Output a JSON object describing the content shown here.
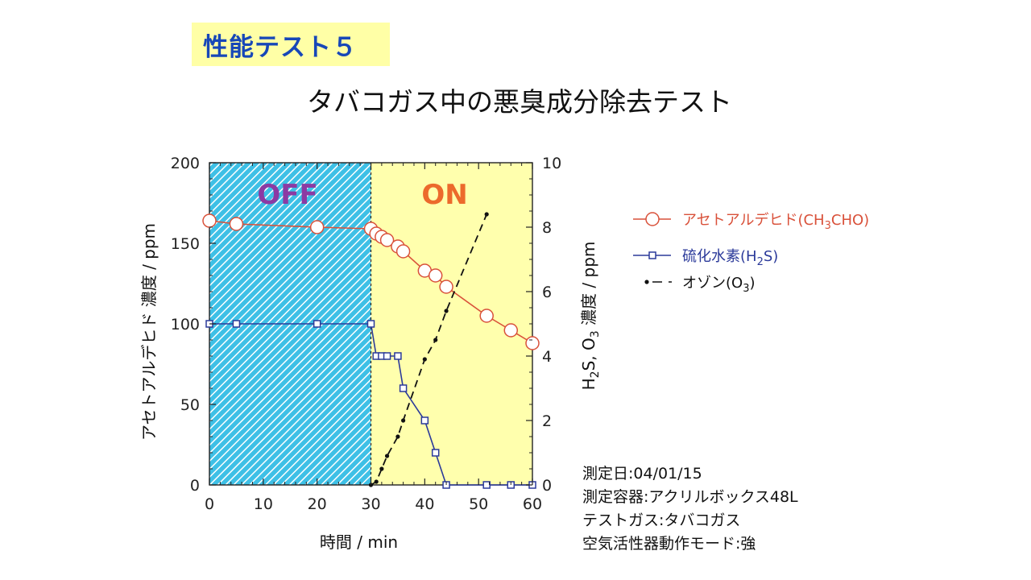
{
  "badge": "性能テスト５",
  "title": "タバコガス中の悪臭成分除去テスト",
  "info_lines": [
    "測定日:04/01/15",
    "測定容器:アクリルボックス48L",
    "テストガス:タバコガス",
    "空気活性器動作モード:強"
  ],
  "chart_data": {
    "type": "line",
    "x_label": "時間 / min",
    "y_left_label": "アセトアルデヒド 濃度 / ppm",
    "y_right_label_parts": {
      "a": "H",
      "a_sub": "2",
      "b": "S, O",
      "b_sub": "3",
      "c": " 濃度 / ppm"
    },
    "xlim": [
      0,
      60
    ],
    "ylim_left": [
      0,
      200
    ],
    "ylim_right": [
      0,
      10
    ],
    "x_ticks": [
      0,
      10,
      20,
      30,
      40,
      50,
      60
    ],
    "y_left_ticks": [
      0,
      50,
      100,
      150,
      200
    ],
    "y_right_ticks": [
      0,
      2,
      4,
      6,
      8,
      10
    ],
    "regions": [
      {
        "label": "OFF",
        "x_range": [
          0,
          30
        ],
        "fill": "#3ec0e6",
        "text_color": "#8c3aa3"
      },
      {
        "label": "ON",
        "x_range": [
          30,
          60
        ],
        "fill": "#ffffad",
        "text_color": "#ec6a2c"
      }
    ],
    "series": [
      {
        "name": "アセトアルデヒド(CH3CHO)",
        "legend_parts": {
          "a": "アセトアルデヒド(CH",
          "a_sub": "3",
          "b": "CHO)"
        },
        "axis": "left",
        "color": "#d9513a",
        "marker": "circle",
        "line": "solid",
        "x": [
          0,
          5,
          20,
          30,
          31,
          32,
          33,
          35,
          36,
          40,
          42,
          44,
          51.5,
          56,
          60
        ],
        "y": [
          164,
          162,
          160,
          159,
          156,
          154,
          152,
          148,
          145,
          133,
          130,
          123,
          105,
          96,
          88
        ]
      },
      {
        "name": "硫化水素(H2S)",
        "legend_parts": {
          "a": "硫化水素(H",
          "a_sub": "2",
          "b": "S)"
        },
        "axis": "right",
        "color": "#2b3a9a",
        "marker": "square",
        "line": "solid",
        "x": [
          0,
          5,
          20,
          30,
          31,
          32,
          33,
          35,
          36,
          40,
          42,
          44,
          51.5,
          56,
          60
        ],
        "y": [
          5,
          5,
          5,
          5,
          4,
          4,
          4,
          4,
          3,
          2,
          1,
          0,
          0,
          0,
          0
        ]
      },
      {
        "name": "オゾン(O3)",
        "legend_parts": {
          "a": "オゾン(O",
          "a_sub": "3",
          "b": ")"
        },
        "axis": "right",
        "color": "#111111",
        "marker": "dot",
        "line": "dashed",
        "x": [
          30,
          31,
          32,
          33,
          35,
          36,
          40,
          42,
          44,
          51.5
        ],
        "y": [
          0,
          0.1,
          0.5,
          0.9,
          1.5,
          2.0,
          3.9,
          4.5,
          5.4,
          8.4
        ]
      }
    ]
  }
}
